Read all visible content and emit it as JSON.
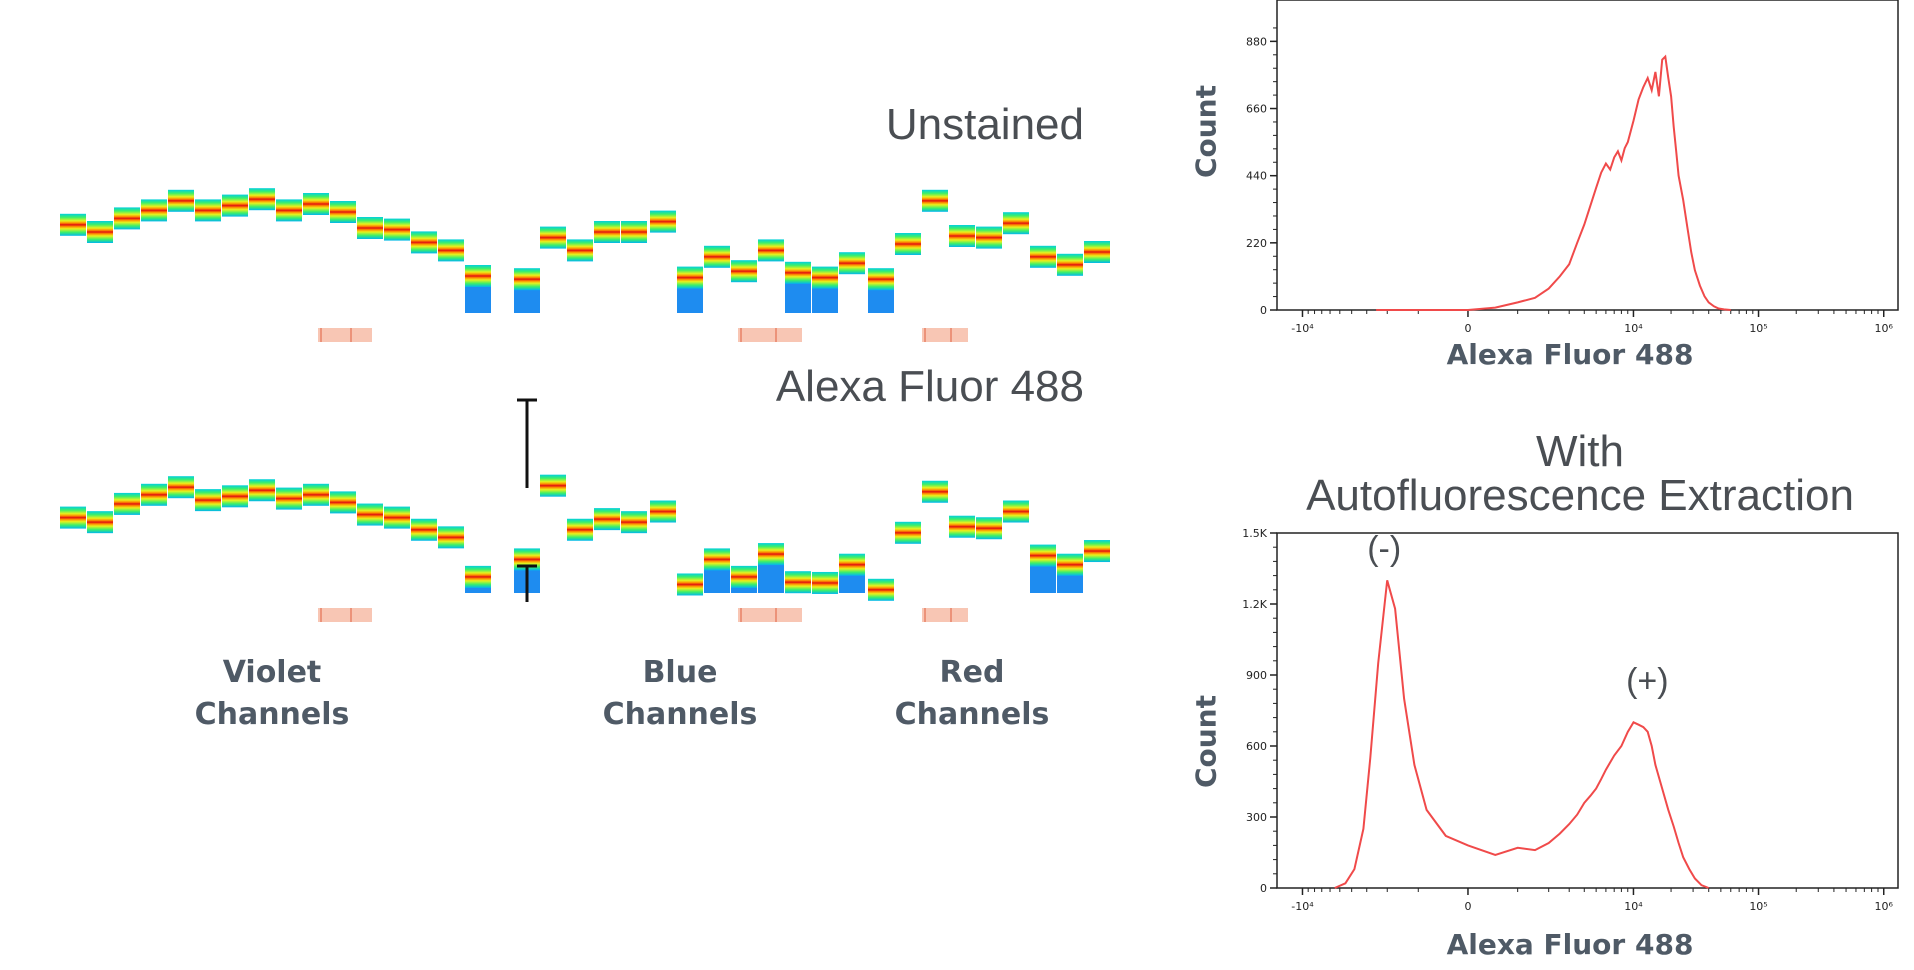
{
  "spectra": {
    "rows": [
      {
        "label": "Unstained",
        "centers": [
          0.54,
          0.45,
          0.62,
          0.72,
          0.84,
          0.72,
          0.78,
          0.86,
          0.72,
          0.8,
          0.7,
          0.5,
          0.48,
          0.32,
          0.22,
          -0.1,
          -0.14,
          0.38,
          0.22,
          0.45,
          0.45,
          0.58,
          -0.12,
          0.14,
          -0.04,
          0.22,
          -0.06,
          -0.12,
          0.06,
          -0.14,
          0.3,
          0.84,
          0.4,
          0.38,
          0.56,
          0.14,
          0.04,
          0.2
        ]
      },
      {
        "label": "Alexa Fluor 488",
        "centers": [
          0.4,
          0.34,
          0.58,
          0.7,
          0.8,
          0.63,
          0.68,
          0.76,
          0.65,
          0.7,
          0.6,
          0.44,
          0.4,
          0.24,
          0.14,
          -0.38,
          -0.15,
          0.82,
          0.24,
          0.38,
          0.34,
          0.48,
          -0.48,
          -0.15,
          -0.38,
          -0.08,
          -0.45,
          -0.46,
          -0.22,
          -0.55,
          0.2,
          0.74,
          0.28,
          0.26,
          0.48,
          -0.1,
          -0.22,
          -0.04
        ]
      }
    ],
    "channel_groups": [
      {
        "line1": "Violet",
        "line2": "Channels"
      },
      {
        "line1": "Blue",
        "line2": "Channels"
      },
      {
        "line1": "Red",
        "line2": "Channels"
      }
    ]
  },
  "chart_data": [
    {
      "type": "line",
      "title": "",
      "xlabel": "Alexa Fluor 488",
      "ylabel": "Count",
      "yticks": [
        "0",
        "220",
        "440",
        "660",
        "880"
      ],
      "ylim": [
        0,
        950
      ],
      "xticks": [
        "-10⁴",
        "0",
        "10⁴",
        "10⁵",
        "10⁶"
      ],
      "color": "#f04a4a",
      "series": [
        {
          "x": [
            -2500,
            -1500,
            0,
            500,
            1000,
            1500,
            2000,
            2500,
            3000,
            3500,
            4000,
            5000,
            5500,
            6000,
            6500,
            7000,
            7500,
            8000,
            8500,
            9000,
            10000,
            11000,
            12000,
            13000,
            14000,
            15000,
            16000,
            17000,
            18000,
            19000,
            20000,
            21000,
            22000,
            23000,
            25000,
            27000,
            29000,
            31000,
            34000,
            37000,
            40000,
            44000,
            48000,
            53000,
            60000
          ],
          "y": [
            0,
            0,
            0,
            8,
            25,
            40,
            70,
            110,
            150,
            220,
            280,
            400,
            450,
            480,
            460,
            500,
            520,
            490,
            530,
            550,
            620,
            690,
            730,
            760,
            720,
            780,
            700,
            820,
            830,
            760,
            700,
            600,
            520,
            440,
            360,
            270,
            190,
            130,
            80,
            45,
            25,
            12,
            5,
            2,
            0
          ]
        }
      ]
    },
    {
      "type": "line",
      "title": "With\nAutofluorescence Extraction",
      "xlabel": "Alexa Fluor 488",
      "ylabel": "Count",
      "yticks": [
        "0",
        "300",
        "600",
        "900",
        "1.2K",
        "1.5K"
      ],
      "ylim": [
        0,
        1500
      ],
      "xticks": [
        "-10⁴",
        "0",
        "10⁴",
        "10⁵",
        "10⁶"
      ],
      "color": "#f04a4a",
      "series": [
        {
          "x": [
            -5500,
            -4500,
            -3800,
            -3200,
            -2800,
            -2400,
            -2000,
            -1700,
            -1400,
            -1100,
            -800,
            -400,
            0,
            500,
            1000,
            1500,
            2000,
            2500,
            3000,
            3500,
            4000,
            4500,
            5000,
            5500,
            6000,
            7000,
            8000,
            9000,
            10000,
            11000,
            12000,
            13000,
            14000,
            15000,
            17000,
            19000,
            21000,
            23000,
            25000,
            28000,
            31000,
            35000,
            40000
          ],
          "y": [
            0,
            20,
            80,
            250,
            550,
            950,
            1300,
            1180,
            800,
            520,
            330,
            220,
            180,
            140,
            170,
            160,
            190,
            230,
            270,
            310,
            360,
            390,
            420,
            460,
            500,
            560,
            600,
            660,
            700,
            690,
            680,
            660,
            600,
            520,
            420,
            330,
            260,
            190,
            130,
            80,
            40,
            12,
            0
          ]
        }
      ],
      "annotations": [
        {
          "text": "(-)",
          "x": -2000,
          "y": 1300
        },
        {
          "text": "(+)",
          "x": 10500,
          "y": 700
        }
      ]
    }
  ]
}
